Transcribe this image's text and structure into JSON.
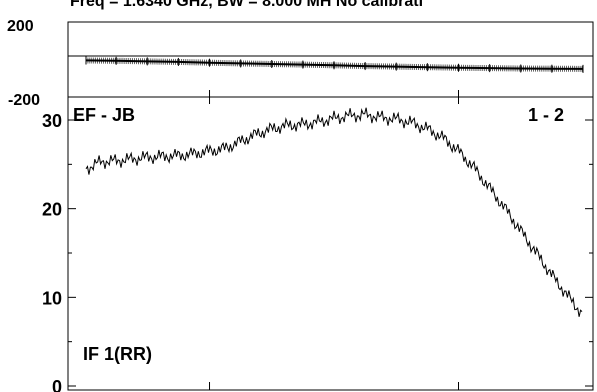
{
  "header": {
    "title": "Freq = 1.6340 GHz, BW = 8.000 MH  No calibrati"
  },
  "phase_panel": {
    "y_top_label": "200",
    "y_bottom_label": "-200"
  },
  "amp_panel": {
    "left_label": "EF - JB",
    "right_label": "1 - 2",
    "bottom_label": "IF 1(RR)",
    "tick_labels": [
      "30",
      "20",
      "10",
      "0"
    ]
  },
  "chart_data": [
    {
      "type": "scatter",
      "title": "Freq = 1.6340 GHz, BW = 8.000 MH  No calibrati",
      "xlabel": "",
      "ylabel": "",
      "ylim": [
        -200,
        200
      ],
      "grid": false,
      "x": [
        1,
        32,
        64,
        96,
        128,
        160,
        192,
        224,
        256,
        288,
        320,
        352,
        384,
        416,
        448,
        480,
        512
      ],
      "y": [
        -5,
        -7,
        -10,
        -13,
        -17,
        -21,
        -24,
        -27,
        -31,
        -35,
        -38,
        -41,
        -44,
        -46,
        -48,
        -49,
        -50
      ]
    },
    {
      "type": "line",
      "title": "",
      "xlabel": "",
      "ylabel": "",
      "ylim": [
        0,
        30
      ],
      "yticks": [
        0,
        10,
        20,
        30
      ],
      "grid": false,
      "x": [
        1,
        16,
        32,
        48,
        64,
        80,
        96,
        112,
        128,
        144,
        160,
        176,
        192,
        208,
        224,
        240,
        256,
        272,
        288,
        304,
        320,
        336,
        352,
        368,
        384,
        400,
        416,
        432,
        448,
        464,
        480,
        496,
        512
      ],
      "series": [
        {
          "values": [
            24.5,
            25.3,
            25.4,
            25.6,
            25.8,
            25.9,
            26.0,
            26.2,
            26.5,
            26.8,
            27.6,
            28.4,
            29.0,
            29.4,
            29.5,
            29.8,
            30.2,
            30.5,
            30.6,
            30.3,
            30.1,
            29.7,
            29.0,
            28.0,
            26.5,
            24.6,
            22.3,
            20.0,
            17.5,
            15.0,
            12.5,
            10.2,
            8.0
          ]
        }
      ]
    }
  ]
}
